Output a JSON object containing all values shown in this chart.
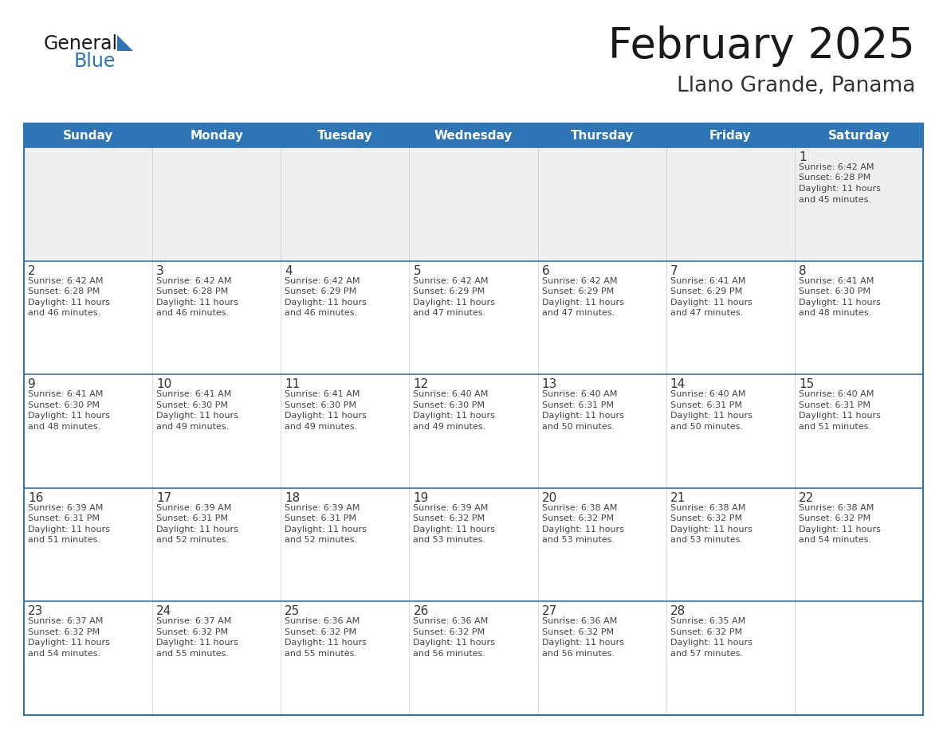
{
  "title": "February 2025",
  "subtitle": "Llano Grande, Panama",
  "days_of_week": [
    "Sunday",
    "Monday",
    "Tuesday",
    "Wednesday",
    "Thursday",
    "Friday",
    "Saturday"
  ],
  "header_bg": "#2E75B6",
  "header_text_color": "#FFFFFF",
  "row0_bg": "#EFEFEF",
  "cell_bg": "#FFFFFF",
  "border_color": "#2E75B6",
  "day_num_color": "#333333",
  "info_text_color": "#444444",
  "title_color": "#1a1a1a",
  "subtitle_color": "#333333",
  "logo_general_color": "#1a1a1a",
  "logo_blue_color": "#2E75B6",
  "calendar_data": [
    [
      null,
      null,
      null,
      null,
      null,
      null,
      1
    ],
    [
      2,
      3,
      4,
      5,
      6,
      7,
      8
    ],
    [
      9,
      10,
      11,
      12,
      13,
      14,
      15
    ],
    [
      16,
      17,
      18,
      19,
      20,
      21,
      22
    ],
    [
      23,
      24,
      25,
      26,
      27,
      28,
      null
    ]
  ],
  "sun_data": {
    "1": {
      "rise": "6:42 AM",
      "set": "6:28 PM",
      "day_hours": 11,
      "day_mins": 45
    },
    "2": {
      "rise": "6:42 AM",
      "set": "6:28 PM",
      "day_hours": 11,
      "day_mins": 46
    },
    "3": {
      "rise": "6:42 AM",
      "set": "6:28 PM",
      "day_hours": 11,
      "day_mins": 46
    },
    "4": {
      "rise": "6:42 AM",
      "set": "6:29 PM",
      "day_hours": 11,
      "day_mins": 46
    },
    "5": {
      "rise": "6:42 AM",
      "set": "6:29 PM",
      "day_hours": 11,
      "day_mins": 47
    },
    "6": {
      "rise": "6:42 AM",
      "set": "6:29 PM",
      "day_hours": 11,
      "day_mins": 47
    },
    "7": {
      "rise": "6:41 AM",
      "set": "6:29 PM",
      "day_hours": 11,
      "day_mins": 47
    },
    "8": {
      "rise": "6:41 AM",
      "set": "6:30 PM",
      "day_hours": 11,
      "day_mins": 48
    },
    "9": {
      "rise": "6:41 AM",
      "set": "6:30 PM",
      "day_hours": 11,
      "day_mins": 48
    },
    "10": {
      "rise": "6:41 AM",
      "set": "6:30 PM",
      "day_hours": 11,
      "day_mins": 49
    },
    "11": {
      "rise": "6:41 AM",
      "set": "6:30 PM",
      "day_hours": 11,
      "day_mins": 49
    },
    "12": {
      "rise": "6:40 AM",
      "set": "6:30 PM",
      "day_hours": 11,
      "day_mins": 49
    },
    "13": {
      "rise": "6:40 AM",
      "set": "6:31 PM",
      "day_hours": 11,
      "day_mins": 50
    },
    "14": {
      "rise": "6:40 AM",
      "set": "6:31 PM",
      "day_hours": 11,
      "day_mins": 50
    },
    "15": {
      "rise": "6:40 AM",
      "set": "6:31 PM",
      "day_hours": 11,
      "day_mins": 51
    },
    "16": {
      "rise": "6:39 AM",
      "set": "6:31 PM",
      "day_hours": 11,
      "day_mins": 51
    },
    "17": {
      "rise": "6:39 AM",
      "set": "6:31 PM",
      "day_hours": 11,
      "day_mins": 52
    },
    "18": {
      "rise": "6:39 AM",
      "set": "6:31 PM",
      "day_hours": 11,
      "day_mins": 52
    },
    "19": {
      "rise": "6:39 AM",
      "set": "6:32 PM",
      "day_hours": 11,
      "day_mins": 53
    },
    "20": {
      "rise": "6:38 AM",
      "set": "6:32 PM",
      "day_hours": 11,
      "day_mins": 53
    },
    "21": {
      "rise": "6:38 AM",
      "set": "6:32 PM",
      "day_hours": 11,
      "day_mins": 53
    },
    "22": {
      "rise": "6:38 AM",
      "set": "6:32 PM",
      "day_hours": 11,
      "day_mins": 54
    },
    "23": {
      "rise": "6:37 AM",
      "set": "6:32 PM",
      "day_hours": 11,
      "day_mins": 54
    },
    "24": {
      "rise": "6:37 AM",
      "set": "6:32 PM",
      "day_hours": 11,
      "day_mins": 55
    },
    "25": {
      "rise": "6:36 AM",
      "set": "6:32 PM",
      "day_hours": 11,
      "day_mins": 55
    },
    "26": {
      "rise": "6:36 AM",
      "set": "6:32 PM",
      "day_hours": 11,
      "day_mins": 56
    },
    "27": {
      "rise": "6:36 AM",
      "set": "6:32 PM",
      "day_hours": 11,
      "day_mins": 56
    },
    "28": {
      "rise": "6:35 AM",
      "set": "6:32 PM",
      "day_hours": 11,
      "day_mins": 57
    }
  }
}
